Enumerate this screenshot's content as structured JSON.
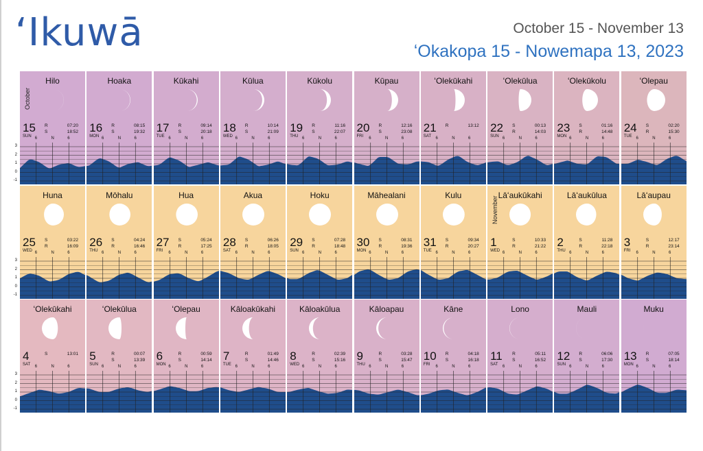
{
  "header": {
    "title": "ʻIkuwā",
    "subtitle_english": "October 15 - November 13",
    "subtitle_hawaiian": "ʻOkakopa 15 - Nowemapa 13, 2023"
  },
  "colors": {
    "title": "#2f5ba8",
    "subtitle_hawaiian": "#2f72c0",
    "tide_fill": "#1f4d8b",
    "cell_purple": "#cfa9d1",
    "cell_orange": "#f6d49d",
    "cell_pink": "#dfb6c0"
  },
  "tide_axis": {
    "y_ticks": [
      "3",
      "2",
      "1",
      "0",
      "-1"
    ],
    "x_ticks": [
      "6",
      "N",
      "6"
    ]
  },
  "rows": [
    {
      "cells": [
        {
          "name": "Hilo",
          "day": "15",
          "weekday": "SUN",
          "month_label": "October",
          "rs": [
            "R",
            "S"
          ],
          "times": [
            "07:20",
            "18:52"
          ],
          "phase": 0.04,
          "waxing": true,
          "bg": "#d2abd1"
        },
        {
          "name": "Hoaka",
          "day": "16",
          "weekday": "MON",
          "rs": [
            "R",
            "S"
          ],
          "times": [
            "08:15",
            "19:32"
          ],
          "phase": 0.08,
          "waxing": true,
          "bg": "#d2abd0"
        },
        {
          "name": "Kūkahi",
          "day": "17",
          "weekday": "TUE",
          "rs": [
            "R",
            "S"
          ],
          "times": [
            "09:14",
            "20:18"
          ],
          "phase": 0.13,
          "waxing": true,
          "bg": "#d3acce"
        },
        {
          "name": "Kūlua",
          "day": "18",
          "weekday": "WED",
          "rs": [
            "R",
            "S"
          ],
          "times": [
            "10:14",
            "21:09"
          ],
          "phase": 0.2,
          "waxing": true,
          "bg": "#d4aecd"
        },
        {
          "name": "Kūkolu",
          "day": "19",
          "weekday": "THU",
          "rs": [
            "R",
            "S"
          ],
          "times": [
            "11:16",
            "22:07"
          ],
          "phase": 0.28,
          "waxing": true,
          "bg": "#d5afcb"
        },
        {
          "name": "Kūpau",
          "day": "20",
          "weekday": "FRI",
          "rs": [
            "R",
            "S"
          ],
          "times": [
            "12:16",
            "23:08"
          ],
          "phase": 0.36,
          "waxing": true,
          "bg": "#d6b0c9"
        },
        {
          "name": "ʻOlekūkahi",
          "day": "21",
          "weekday": "SAT",
          "rs": [
            "R"
          ],
          "times": [
            "13:12"
          ],
          "phase": 0.45,
          "waxing": true,
          "bg": "#d8b1c6"
        },
        {
          "name": "ʻOlekūlua",
          "day": "22",
          "weekday": "SUN",
          "rs": [
            "S",
            "R"
          ],
          "times": [
            "00:13",
            "14:03"
          ],
          "phase": 0.55,
          "waxing": true,
          "bg": "#d9b3c3"
        },
        {
          "name": "ʻOlekūkolu",
          "day": "23",
          "weekday": "MON",
          "rs": [
            "S",
            "R"
          ],
          "times": [
            "01:16",
            "14:48"
          ],
          "phase": 0.64,
          "waxing": true,
          "bg": "#dbb4c0"
        },
        {
          "name": "ʻOlepau",
          "day": "24",
          "weekday": "TUE",
          "rs": [
            "S",
            "R"
          ],
          "times": [
            "02:20",
            "15:30"
          ],
          "phase": 0.73,
          "waxing": true,
          "bg": "#dcb6bc"
        }
      ],
      "tide_curve": [
        0.5,
        1.6,
        1.2,
        0.4,
        0.9,
        1.1,
        0.6,
        0.8,
        1.7,
        1.3,
        0.5,
        1.0,
        1.2,
        0.7,
        0.9,
        1.8,
        1.4,
        0.6,
        0.9,
        1.2,
        0.8,
        0.9,
        1.9,
        1.5,
        0.7,
        0.9,
        1.3,
        0.9,
        0.8,
        1.9,
        1.6,
        0.8,
        0.9,
        1.3,
        1.0,
        0.7,
        1.8,
        1.8,
        1.0,
        0.9,
        1.3,
        1.2,
        0.7,
        1.5,
        2.0,
        1.2,
        0.8,
        1.2,
        1.3,
        0.8,
        1.2,
        2.0,
        1.5,
        0.8,
        1.1,
        1.4,
        1.0,
        0.9,
        1.9,
        1.8,
        1.0,
        1.0,
        1.5,
        1.2,
        0.8,
        1.6,
        2.0,
        1.3
      ]
    },
    {
      "cells": [
        {
          "name": "Huna",
          "day": "25",
          "weekday": "WED",
          "rs": [
            "S",
            "R"
          ],
          "times": [
            "03:22",
            "16:09"
          ],
          "phase": 0.8,
          "waxing": true,
          "bg": "#f7d59d"
        },
        {
          "name": "Mōhalu",
          "day": "26",
          "weekday": "THU",
          "rs": [
            "S",
            "R"
          ],
          "times": [
            "04:24",
            "16:46"
          ],
          "phase": 0.87,
          "waxing": true,
          "bg": "#f7d59d"
        },
        {
          "name": "Hua",
          "day": "27",
          "weekday": "FRI",
          "rs": [
            "S",
            "R"
          ],
          "times": [
            "05:24",
            "17:25"
          ],
          "phase": 0.93,
          "waxing": true,
          "bg": "#f7d59d"
        },
        {
          "name": "Akua",
          "day": "28",
          "weekday": "SAT",
          "rs": [
            "S",
            "R"
          ],
          "times": [
            "06:26",
            "18:05"
          ],
          "phase": 0.98,
          "waxing": true,
          "bg": "#f7d59d"
        },
        {
          "name": "Hoku",
          "day": "29",
          "weekday": "SUN",
          "rs": [
            "S",
            "R"
          ],
          "times": [
            "07:28",
            "18:48"
          ],
          "phase": 1.0,
          "waxing": true,
          "bg": "#f7d59d"
        },
        {
          "name": "Māhealani",
          "day": "30",
          "weekday": "MON",
          "rs": [
            "S",
            "R"
          ],
          "times": [
            "08:31",
            "19:36"
          ],
          "phase": 0.99,
          "waxing": false,
          "bg": "#f7d59d"
        },
        {
          "name": "Kulu",
          "day": "31",
          "weekday": "TUE",
          "rs": [
            "S",
            "R"
          ],
          "times": [
            "09:34",
            "20:27"
          ],
          "phase": 0.95,
          "waxing": false,
          "bg": "#f7d59d"
        },
        {
          "name": "Lāʻaukūkahi",
          "day": "1",
          "weekday": "WED",
          "month_label": "November",
          "rs": [
            "S",
            "R"
          ],
          "times": [
            "10:33",
            "21:22"
          ],
          "phase": 0.89,
          "waxing": false,
          "bg": "#f7d59d"
        },
        {
          "name": "Lāʻaukūlua",
          "day": "2",
          "weekday": "THU",
          "rs": [
            "S",
            "R"
          ],
          "times": [
            "11:28",
            "22:18"
          ],
          "phase": 0.82,
          "waxing": false,
          "bg": "#f7d59d"
        },
        {
          "name": "Lāʻaupau",
          "day": "3",
          "weekday": "FRI",
          "rs": [
            "S",
            "R"
          ],
          "times": [
            "12:17",
            "23:14"
          ],
          "phase": 0.74,
          "waxing": false,
          "bg": "#f7d59d"
        }
      ],
      "tide_curve": [
        1.0,
        1.6,
        1.3,
        0.6,
        0.8,
        1.5,
        1.8,
        1.2,
        0.5,
        0.7,
        1.4,
        1.7,
        1.1,
        0.5,
        0.8,
        1.5,
        1.6,
        1.0,
        0.6,
        1.2,
        1.9,
        1.6,
        1.0,
        0.8,
        1.4,
        1.9,
        1.5,
        0.9,
        0.9,
        1.6,
        2.0,
        1.4,
        0.8,
        1.0,
        1.8,
        2.1,
        1.4,
        0.8,
        1.0,
        1.8,
        2.1,
        1.4,
        0.8,
        1.0,
        1.8,
        2.0,
        1.4,
        0.8,
        1.1,
        1.8,
        1.9,
        1.3,
        0.8,
        1.2,
        1.8,
        1.8,
        1.1,
        0.7,
        1.3,
        1.8,
        1.6,
        1.0,
        0.7,
        1.3,
        1.7,
        1.5,
        1.0,
        0.9
      ]
    },
    {
      "cells": [
        {
          "name": "ʻOlekūkahi",
          "day": "4",
          "weekday": "SAT",
          "rs": [
            "S"
          ],
          "times": [
            "13:01"
          ],
          "phase": 0.65,
          "waxing": false,
          "bg": "#e4b9c0"
        },
        {
          "name": "ʻOlekūlua",
          "day": "5",
          "weekday": "SUN",
          "rs": [
            "R",
            "S"
          ],
          "times": [
            "00:07",
            "13:39"
          ],
          "phase": 0.56,
          "waxing": false,
          "bg": "#e2b8c2"
        },
        {
          "name": "ʻOlepau",
          "day": "6",
          "weekday": "MON",
          "rs": [
            "R",
            "S"
          ],
          "times": [
            "00:59",
            "14:14"
          ],
          "phase": 0.46,
          "waxing": false,
          "bg": "#e0b6c4"
        },
        {
          "name": "Kāloakūkahi",
          "day": "7",
          "weekday": "TUE",
          "rs": [
            "R",
            "S"
          ],
          "times": [
            "01:49",
            "14:46"
          ],
          "phase": 0.37,
          "waxing": false,
          "bg": "#deb4c6"
        },
        {
          "name": "Kāloakūlua",
          "day": "8",
          "weekday": "WED",
          "rs": [
            "R",
            "S"
          ],
          "times": [
            "02:39",
            "15:16"
          ],
          "phase": 0.28,
          "waxing": false,
          "bg": "#dcb3c8"
        },
        {
          "name": "Kāloapau",
          "day": "9",
          "weekday": "THU",
          "rs": [
            "R",
            "S"
          ],
          "times": [
            "03:28",
            "15:47"
          ],
          "phase": 0.2,
          "waxing": false,
          "bg": "#d9b1c9"
        },
        {
          "name": "Kāne",
          "day": "10",
          "weekday": "FRI",
          "rs": [
            "R",
            "S"
          ],
          "times": [
            "04:18",
            "16:18"
          ],
          "phase": 0.13,
          "waxing": false,
          "bg": "#d7b0cb"
        },
        {
          "name": "Lono",
          "day": "11",
          "weekday": "SAT",
          "rs": [
            "R",
            "S"
          ],
          "times": [
            "05:11",
            "16:52"
          ],
          "phase": 0.07,
          "waxing": false,
          "bg": "#d5aecd"
        },
        {
          "name": "Mauli",
          "day": "12",
          "weekday": "SUN",
          "rs": [
            "R",
            "S"
          ],
          "times": [
            "06:06",
            "17:30"
          ],
          "phase": 0.03,
          "waxing": false,
          "bg": "#d3adcf"
        },
        {
          "name": "Muku",
          "day": "13",
          "weekday": "MON",
          "rs": [
            "R",
            "S"
          ],
          "times": [
            "07:05",
            "18:14"
          ],
          "phase": 0.01,
          "waxing": false,
          "bg": "#d1abd1"
        }
      ],
      "tide_curve": [
        0.5,
        0.9,
        1.3,
        1.1,
        0.8,
        1.0,
        1.5,
        1.4,
        1.0,
        1.0,
        1.4,
        1.6,
        1.2,
        1.0,
        1.3,
        1.7,
        1.5,
        1.1,
        1.1,
        1.5,
        1.6,
        1.2,
        1.0,
        1.3,
        1.6,
        1.4,
        1.0,
        1.0,
        1.3,
        1.5,
        1.1,
        0.8,
        0.9,
        1.3,
        1.2,
        0.8,
        0.7,
        1.0,
        1.3,
        1.0,
        0.6,
        0.8,
        1.2,
        1.3,
        0.9,
        0.6,
        1.0,
        1.6,
        1.4,
        0.8,
        0.7,
        1.2,
        1.7,
        1.4,
        0.8,
        0.8,
        1.3,
        1.9,
        1.5,
        0.9,
        0.8,
        1.4,
        1.9,
        1.5,
        0.9,
        0.9,
        1.3,
        1.2
      ]
    }
  ]
}
